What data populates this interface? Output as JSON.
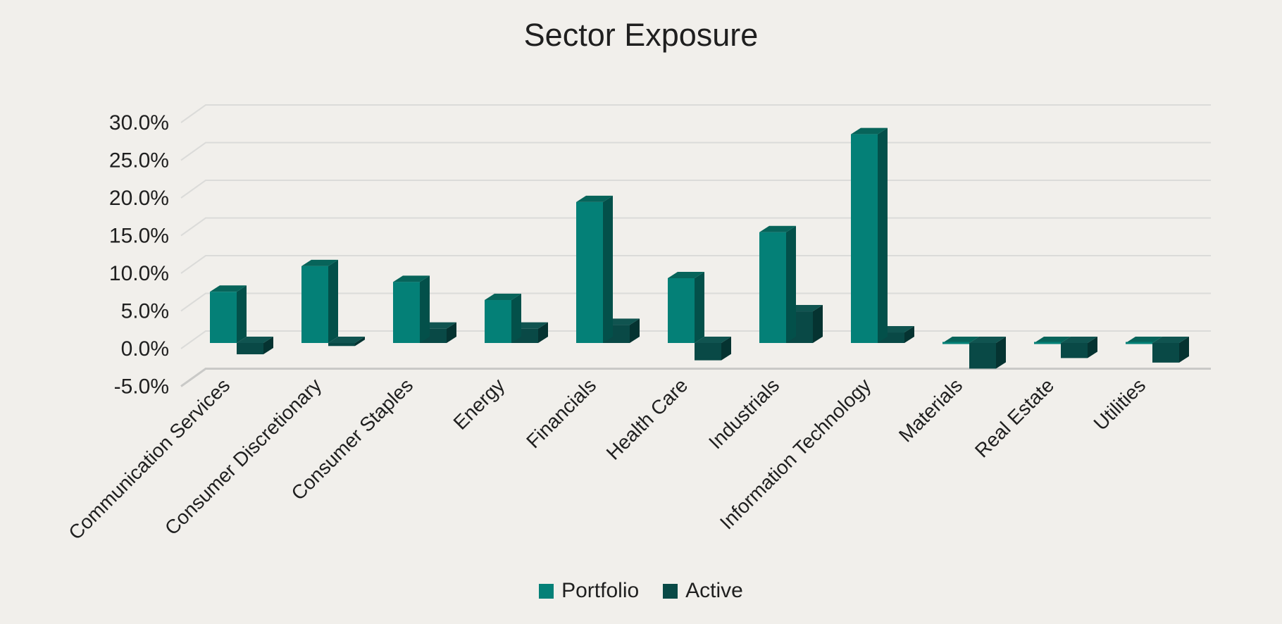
{
  "page": {
    "background_color": "#F1EFEB",
    "text_color": "#1F1F1F"
  },
  "chart_data": {
    "type": "bar",
    "variant": "3d-clustered-column",
    "title": "Sector Exposure",
    "categories": [
      "Communication Services",
      "Consumer Discretionary",
      "Consumer Staples",
      "Energy",
      "Financials",
      "Health Care",
      "Industrials",
      "Information Technology",
      "Materials",
      "Real Estate",
      "Utilities"
    ],
    "series": [
      {
        "name": "Portfolio",
        "color": "#048077",
        "color_top": "#07645A",
        "color_side": "#03504A",
        "values": [
          6.8,
          10.2,
          8.1,
          5.7,
          18.7,
          8.6,
          14.7,
          27.7,
          0.0,
          0.0,
          0.0
        ]
      },
      {
        "name": "Active",
        "color": "#094946",
        "color_top": "#105450",
        "color_side": "#053331",
        "values": [
          -1.5,
          -0.4,
          1.9,
          1.9,
          2.4,
          -2.3,
          4.2,
          1.4,
          -3.4,
          -2.0,
          -2.6
        ]
      }
    ],
    "ylabel": "",
    "xlabel": "",
    "ylim": [
      -5,
      30
    ],
    "ytick_step": 5,
    "ytick_values": [
      30,
      25,
      20,
      15,
      10,
      5,
      0,
      -5
    ],
    "ytick_labels": [
      "30.0%",
      "25.0%",
      "20.0%",
      "15.0%",
      "10.0%",
      "5.0%",
      "0.0%",
      "-5.0%"
    ],
    "grid": true,
    "gridline_color": "#DBDBD9",
    "baseline_color": "#C9C9C7",
    "legend_position": "bottom"
  }
}
